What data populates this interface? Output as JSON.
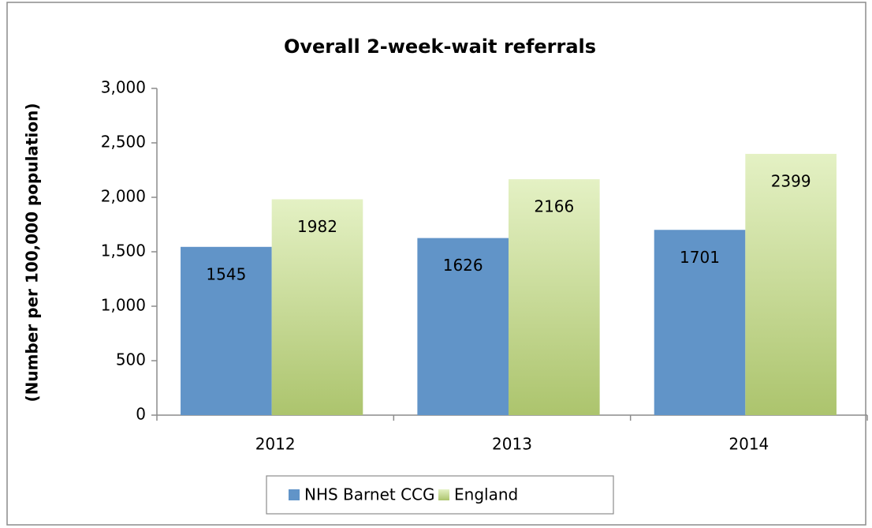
{
  "chart_data": {
    "type": "bar",
    "title": "Overall 2-week-wait referrals",
    "y_label": "(Number per 100,000 population)",
    "categories": [
      "2012",
      "2013",
      "2014"
    ],
    "series": [
      {
        "name": "NHS Barnet CCG",
        "color": "#6194c8",
        "values": [
          1545,
          1626,
          1701
        ]
      },
      {
        "name": "England",
        "color": "#c4df7c",
        "values": [
          1982,
          2166,
          2399
        ]
      }
    ],
    "ylim": [
      0,
      3000
    ],
    "yticks": [
      0,
      500,
      {
        "value": 1000,
        "label": "1,000"
      },
      {
        "value": 1500,
        "label": "1,500"
      },
      {
        "value": 2000,
        "label": "2,000"
      },
      {
        "value": 2500,
        "label": "2,500"
      },
      {
        "value": 3000,
        "label": "3,000"
      }
    ],
    "legend": "bottom"
  }
}
